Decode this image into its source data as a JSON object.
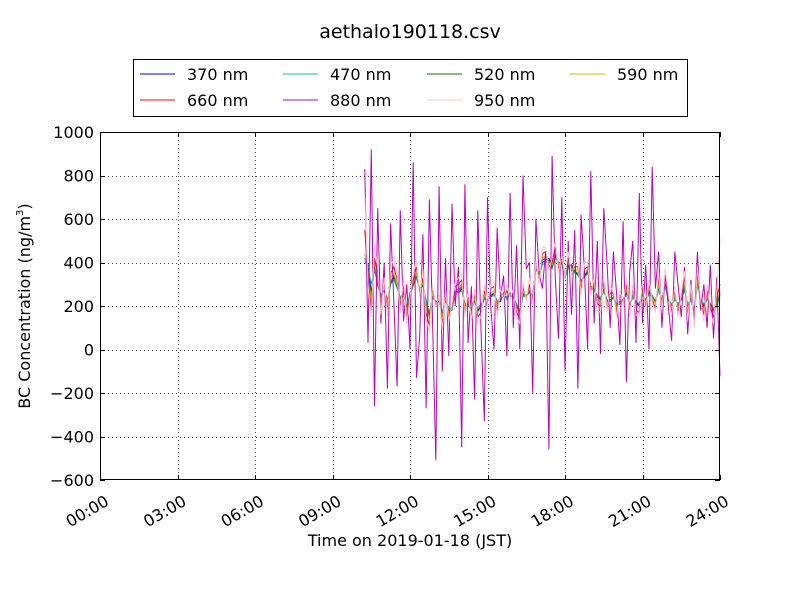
{
  "chart_data": {
    "type": "line",
    "title": "aethalo190118.csv",
    "xlabel": "Time on 2019-01-18 (JST)",
    "ylabel_main": "BC Concentration (ng/m",
    "ylabel_sup": "3",
    "ylabel_tail": ")",
    "x_unit": "hours",
    "xlim": [
      0,
      24
    ],
    "ylim": [
      -600,
      1000
    ],
    "x_ticks": [
      0,
      3,
      6,
      9,
      12,
      15,
      18,
      21,
      24
    ],
    "x_tick_labels": [
      "00:00",
      "03:00",
      "06:00",
      "09:00",
      "12:00",
      "15:00",
      "18:00",
      "21:00",
      "24:00"
    ],
    "y_ticks": [
      -600,
      -400,
      -200,
      0,
      200,
      400,
      600,
      800,
      1000
    ],
    "y_tick_labels": [
      "−600",
      "−400",
      "−200",
      "0",
      "200",
      "400",
      "600",
      "800",
      "1000"
    ],
    "grid": true,
    "legend_position": "top",
    "series": [
      {
        "name": "370 nm",
        "color": "#0000ff",
        "x_start": 10.25,
        "x_step": 0.125,
        "values": [
          400,
          390,
          260,
          380,
          300,
          250,
          270,
          220,
          300,
          330,
          300,
          230,
          260,
          190,
          260,
          300,
          330,
          280,
          300,
          220,
          160,
          240,
          220,
          220,
          160,
          230,
          180,
          180,
          270,
          260,
          280,
          210,
          200,
          190,
          220,
          180,
          200,
          230,
          230,
          240,
          260,
          220,
          220,
          260,
          230,
          260,
          240,
          210,
          170,
          250,
          250,
          260,
          240,
          380,
          340,
          400,
          410,
          420,
          380,
          430,
          400,
          400,
          330,
          380,
          390,
          360,
          340,
          320,
          330,
          360,
          290,
          270,
          250,
          230,
          270,
          230,
          220,
          240,
          200,
          210,
          230,
          260,
          200,
          240,
          220,
          200,
          250,
          230,
          260,
          250,
          220,
          280,
          230,
          300,
          230,
          200,
          230,
          210,
          230,
          280,
          200,
          230,
          170,
          310,
          230,
          200,
          230,
          210,
          180,
          200,
          250
        ]
      },
      {
        "name": "470 nm",
        "color": "#00bfbf",
        "x_start": 10.25,
        "x_step": 0.125,
        "values": [
          410,
          380,
          300,
          370,
          290,
          250,
          280,
          230,
          300,
          320,
          280,
          240,
          260,
          200,
          250,
          290,
          330,
          280,
          290,
          230,
          170,
          240,
          220,
          230,
          170,
          230,
          190,
          180,
          270,
          260,
          270,
          210,
          200,
          190,
          220,
          190,
          210,
          230,
          230,
          240,
          250,
          220,
          230,
          260,
          230,
          260,
          240,
          210,
          180,
          240,
          250,
          260,
          250,
          370,
          340,
          390,
          400,
          410,
          370,
          420,
          400,
          390,
          330,
          370,
          380,
          350,
          340,
          320,
          330,
          350,
          290,
          270,
          250,
          240,
          270,
          230,
          220,
          240,
          210,
          210,
          230,
          250,
          210,
          240,
          220,
          210,
          250,
          230,
          250,
          250,
          220,
          270,
          230,
          290,
          230,
          210,
          230,
          210,
          230,
          270,
          210,
          230,
          180,
          300,
          230,
          210,
          230,
          210,
          190,
          200,
          240
        ]
      },
      {
        "name": "520 nm",
        "color": "#008000",
        "x_start": 10.25,
        "x_step": 0.125,
        "values": [
          420,
          370,
          240,
          390,
          300,
          240,
          280,
          220,
          310,
          340,
          290,
          230,
          270,
          190,
          250,
          300,
          340,
          270,
          300,
          210,
          150,
          250,
          220,
          220,
          160,
          230,
          170,
          190,
          260,
          270,
          290,
          200,
          210,
          180,
          230,
          170,
          200,
          240,
          220,
          250,
          260,
          210,
          230,
          250,
          240,
          250,
          240,
          200,
          170,
          260,
          240,
          270,
          240,
          380,
          330,
          410,
          420,
          410,
          380,
          440,
          390,
          400,
          340,
          390,
          380,
          360,
          350,
          310,
          340,
          360,
          290,
          280,
          240,
          230,
          280,
          220,
          230,
          240,
          200,
          220,
          230,
          270,
          200,
          250,
          210,
          200,
          260,
          220,
          270,
          240,
          220,
          290,
          220,
          310,
          230,
          200,
          240,
          200,
          230,
          290,
          190,
          240,
          160,
          320,
          230,
          190,
          240,
          210,
          180,
          210,
          260
        ]
      },
      {
        "name": "590 nm",
        "color": "#bfbf00",
        "x_start": 10.25,
        "x_step": 0.125,
        "values": [
          440,
          350,
          220,
          400,
          320,
          230,
          290,
          210,
          330,
          350,
          300,
          220,
          280,
          180,
          250,
          310,
          350,
          270,
          310,
          200,
          140,
          260,
          210,
          230,
          150,
          240,
          170,
          190,
          270,
          280,
          300,
          190,
          220,
          170,
          240,
          170,
          190,
          250,
          220,
          260,
          270,
          200,
          240,
          250,
          250,
          250,
          250,
          190,
          160,
          270,
          240,
          280,
          230,
          390,
          330,
          420,
          430,
          400,
          390,
          450,
          390,
          410,
          340,
          400,
          370,
          370,
          360,
          300,
          350,
          370,
          280,
          290,
          230,
          220,
          290,
          210,
          240,
          250,
          190,
          230,
          220,
          280,
          190,
          260,
          200,
          190,
          270,
          210,
          280,
          240,
          210,
          300,
          210,
          320,
          240,
          190,
          250,
          190,
          240,
          300,
          180,
          250,
          150,
          330,
          230,
          180,
          250,
          200,
          170,
          220,
          270
        ]
      },
      {
        "name": "660 nm",
        "color": "#ff0000",
        "x_start": 10.25,
        "x_step": 0.125,
        "values": [
          550,
          330,
          180,
          420,
          350,
          200,
          310,
          180,
          350,
          380,
          320,
          200,
          300,
          150,
          250,
          320,
          380,
          260,
          330,
          170,
          110,
          280,
          200,
          240,
          120,
          250,
          150,
          200,
          290,
          300,
          320,
          170,
          240,
          150,
          260,
          150,
          170,
          270,
          210,
          280,
          290,
          180,
          260,
          240,
          270,
          240,
          260,
          170,
          140,
          290,
          230,
          300,
          220,
          400,
          310,
          440,
          450,
          380,
          400,
          470,
          370,
          420,
          340,
          420,
          360,
          380,
          380,
          280,
          370,
          380,
          270,
          310,
          210,
          200,
          310,
          190,
          260,
          260,
          170,
          250,
          210,
          300,
          170,
          280,
          180,
          170,
          290,
          190,
          300,
          230,
          190,
          330,
          190,
          340,
          250,
          170,
          270,
          170,
          250,
          330,
          160,
          270,
          130,
          350,
          230,
          160,
          270,
          190,
          150,
          240,
          300
        ]
      },
      {
        "name": "880 nm",
        "color": "#bf00bf",
        "x_start": 10.25,
        "x_step": 0.125,
        "values": [
          830,
          30,
          920,
          -260,
          650,
          120,
          400,
          -180,
          580,
          210,
          -170,
          640,
          130,
          300,
          0,
          860,
          -130,
          60,
          530,
          -270,
          690,
          120,
          -510,
          750,
          -100,
          420,
          -30,
          670,
          200,
          380,
          -450,
          760,
          30,
          290,
          -230,
          640,
          90,
          -330,
          700,
          200,
          0,
          560,
          240,
          340,
          -30,
          720,
          100,
          480,
          0,
          800,
          370,
          400,
          -200,
          600,
          350,
          280,
          450,
          -460,
          890,
          330,
          50,
          700,
          -100,
          500,
          160,
          550,
          -180,
          620,
          370,
          0,
          820,
          120,
          500,
          -20,
          650,
          400,
          100,
          450,
          250,
          20,
          590,
          -150,
          350,
          500,
          30,
          720,
          120,
          390,
          0,
          840,
          280,
          450,
          100,
          350,
          200,
          40,
          450,
          300,
          150,
          380,
          70,
          320,
          120,
          450,
          180,
          300,
          100,
          390,
          50,
          330,
          -120
        ]
      },
      {
        "name": "950 nm",
        "color": "#ffc0cb",
        "x_start": 10.25,
        "x_step": 0.125,
        "values": [
          700,
          300,
          150,
          480,
          380,
          160,
          330,
          150,
          380,
          420,
          340,
          170,
          330,
          120,
          240,
          350,
          410,
          240,
          370,
          140,
          80,
          300,
          190,
          250,
          90,
          270,
          130,
          210,
          310,
          330,
          350,
          150,
          270,
          130,
          280,
          120,
          150,
          300,
          200,
          300,
          310,
          150,
          280,
          230,
          300,
          230,
          280,
          150,
          120,
          310,
          220,
          330,
          200,
          410,
          300,
          470,
          470,
          360,
          420,
          500,
          350,
          440,
          330,
          450,
          340,
          400,
          400,
          250,
          400,
          400,
          250,
          330,
          180,
          170,
          340,
          170,
          290,
          270,
          150,
          270,
          200,
          330,
          150,
          300,
          160,
          150,
          320,
          170,
          320,
          220,
          170,
          360,
          170,
          370,
          260,
          150,
          290,
          150,
          260,
          360,
          130,
          300,
          100,
          380,
          230,
          130,
          300,
          170,
          120,
          270,
          510
        ]
      }
    ]
  }
}
